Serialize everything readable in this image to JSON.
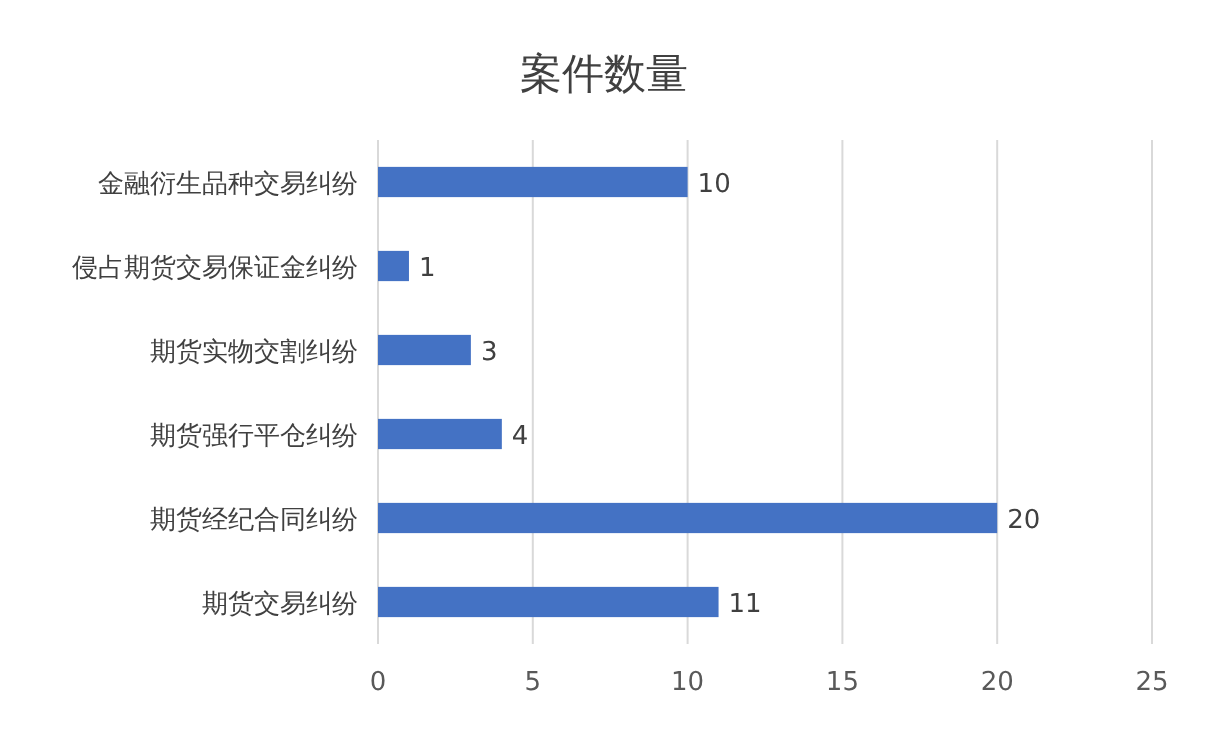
{
  "chart_data": {
    "type": "bar",
    "orientation": "horizontal",
    "title": "案件数量",
    "categories": [
      "金融衍生品种交易纠纷",
      "侵占期货交易保证金纠纷",
      "期货实物交割纠纷",
      "期货强行平仓纠纷",
      "期货经纪合同纠纷",
      "期货交易纠纷"
    ],
    "values": [
      10,
      1,
      3,
      4,
      20,
      11
    ],
    "color": "#4472c4",
    "xlim": [
      0,
      25
    ],
    "xticks": [
      0,
      5,
      10,
      15,
      20,
      25
    ],
    "grid": "x",
    "data_labels": true
  }
}
